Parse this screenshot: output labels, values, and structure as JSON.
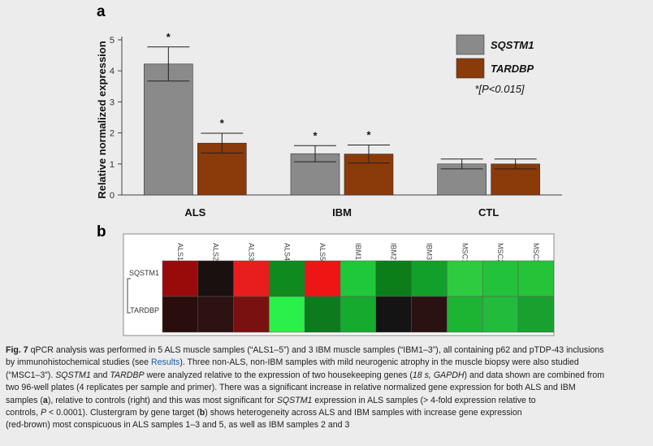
{
  "panel_a_label": "a",
  "panel_b_label": "b",
  "chart_data": [
    {
      "type": "bar",
      "panel": "a",
      "categories": [
        "ALS",
        "IBM",
        "CTL"
      ],
      "ylabel": "Relative normalized expression",
      "ylim": [
        0,
        5
      ],
      "yticks": [
        "0",
        "1",
        "2",
        "3",
        "4",
        "5"
      ],
      "grid": false,
      "legend_position": "top-right",
      "significance_note": "*[P<0.015]",
      "series": [
        {
          "name": "SQSTM1",
          "color": "#8a8a8a",
          "values": [
            4.22,
            1.33,
            1.0
          ],
          "errors": [
            0.55,
            0.26,
            0.16
          ],
          "significant": [
            "*",
            "*",
            ""
          ]
        },
        {
          "name": "TARDBP",
          "color": "#8b3a0a",
          "values": [
            1.67,
            1.32,
            1.0
          ],
          "errors": [
            0.32,
            0.29,
            0.16
          ],
          "significant": [
            "*",
            "*",
            ""
          ]
        }
      ]
    },
    {
      "type": "heatmap",
      "panel": "b",
      "columns": [
        "ALS1",
        "ALS2",
        "ALS3",
        "ALS4",
        "ALS5",
        "IBM1",
        "IBM2",
        "IBM3",
        "MSC1",
        "MSC2",
        "MSC3"
      ],
      "rows": [
        "SQSTM1",
        "TARDBP"
      ],
      "cell_colors": [
        [
          "#990b0b",
          "#1a1010",
          "#e81d1d",
          "#0f8a1f",
          "#ee1515",
          "#1ec83a",
          "#0b7e1a",
          "#12a02a",
          "#2ecb40",
          "#22c23a",
          "#25c338"
        ],
        [
          "#2a0e0e",
          "#2c1212",
          "#7a1111",
          "#2bf04a",
          "#0d7a1e",
          "#16ab2e",
          "#141414",
          "#2a1212",
          "#1db434",
          "#22bb3c",
          "#19a12f"
        ]
      ]
    }
  ],
  "caption": {
    "fig_label": "Fig. 7",
    "lines": [
      " qPCR analysis was performed in 5 ALS muscle samples (“ALS1–5”) and 3 IBM muscle samples (“IBM1–3”), all containing p62 and pTDP-43 inclusions",
      "by immunohistochemical studies (see ",
      "Results",
      "). Three non-ALS, non-IBM samples with mild neurogenic atrophy in the muscle biopsy were also studied",
      "(“MSC1–3”). ",
      "SQSTM1",
      " and ",
      "TARDBP",
      " were analyzed relative to the expression of two housekeeping genes (",
      "18 s, GAPDH",
      ") and data shown are combined from",
      "two 96-well plates (4 replicates per sample and primer). There was a significant increase in relative normalized gene expression for both ALS and IBM",
      "samples (",
      "a",
      "), relative to controls (right) and this was most significant for ",
      "SQSTM1",
      " expression in ALS samples (> 4-fold expression relative to",
      "controls, ",
      "P",
      " < 0.0001). Clustergram by gene target (",
      "b",
      ") shows heterogeneity across ALS and IBM samples with increase gene expression",
      "(red-brown) most conspicuous in ALS samples 1–3 and 5, as well as IBM samples 2 and 3"
    ]
  }
}
